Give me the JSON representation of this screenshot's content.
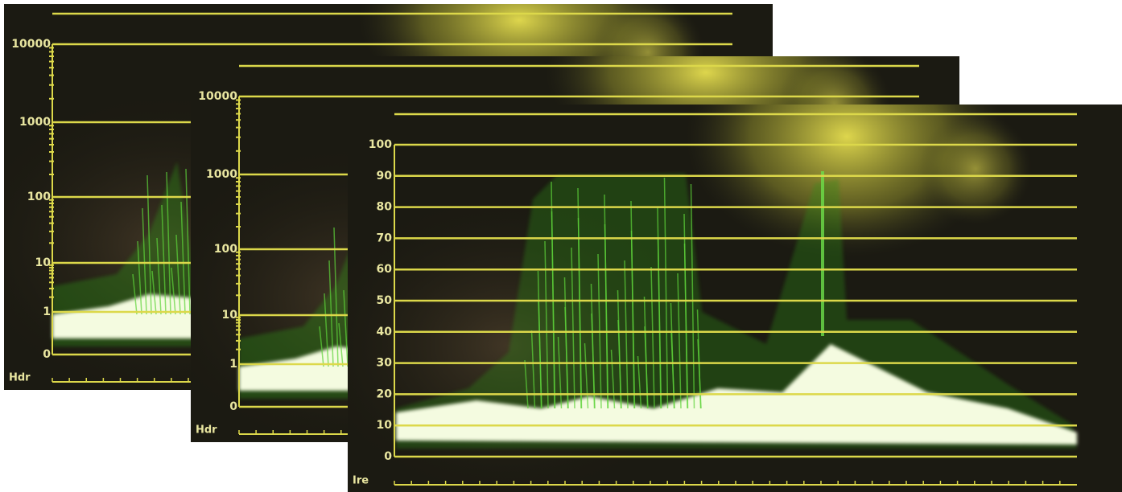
{
  "panels": [
    {
      "unit": "Hdr",
      "scale": [
        10000,
        1000,
        100,
        10,
        1,
        0
      ]
    },
    {
      "unit": "Hdr",
      "scale": [
        10000,
        1000,
        100,
        10,
        1,
        0
      ]
    },
    {
      "unit": "Ire",
      "scale": [
        100,
        90,
        80,
        70,
        60,
        50,
        40,
        30,
        20,
        10,
        0
      ]
    }
  ]
}
